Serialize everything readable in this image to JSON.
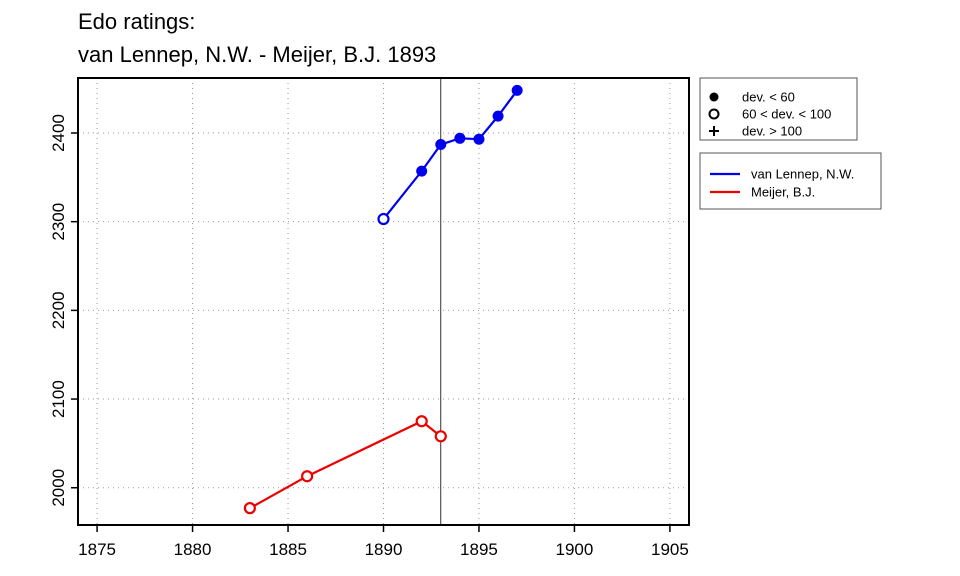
{
  "chart_data": {
    "type": "line",
    "title_lines": [
      "Edo ratings:",
      "van Lennep, N.W. - Meijer, B.J. 1893"
    ],
    "xlabel": "",
    "ylabel": "",
    "xlim": [
      1874,
      1906
    ],
    "ylim": [
      1958,
      2462
    ],
    "x_ticks": [
      1875,
      1880,
      1885,
      1890,
      1895,
      1900,
      1905
    ],
    "y_ticks": [
      2000,
      2100,
      2200,
      2300,
      2400
    ],
    "grid": true,
    "grid_style": "dotted",
    "reference_line_x": 1893,
    "colors": {
      "van_lennep": "#0000ee",
      "meijer": "#ee0000",
      "grid": "#999999",
      "axis": "#000000"
    },
    "series": [
      {
        "name": "van Lennep, N.W.",
        "color": "#0000ee",
        "points": [
          {
            "x": 1890,
            "y": 2303,
            "marker": "open-circle"
          },
          {
            "x": 1892,
            "y": 2357,
            "marker": "filled-circle"
          },
          {
            "x": 1893,
            "y": 2387,
            "marker": "filled-circle"
          },
          {
            "x": 1894,
            "y": 2394,
            "marker": "filled-circle"
          },
          {
            "x": 1895,
            "y": 2393,
            "marker": "filled-circle"
          },
          {
            "x": 1896,
            "y": 2419,
            "marker": "filled-circle"
          },
          {
            "x": 1897,
            "y": 2448,
            "marker": "filled-circle"
          }
        ]
      },
      {
        "name": "Meijer, B.J.",
        "color": "#ee0000",
        "points": [
          {
            "x": 1883,
            "y": 1977,
            "marker": "open-circle"
          },
          {
            "x": 1886,
            "y": 2013,
            "marker": "open-circle"
          },
          {
            "x": 1892,
            "y": 2075,
            "marker": "open-circle"
          },
          {
            "x": 1893,
            "y": 2058,
            "marker": "open-circle"
          }
        ]
      }
    ],
    "marker_legend": {
      "placement": "top-right, outside plot",
      "items": [
        {
          "symbol": "filled-circle",
          "label": "dev. < 60"
        },
        {
          "symbol": "open-circle",
          "label": "60 < dev. < 100"
        },
        {
          "symbol": "plus",
          "label": "dev. > 100"
        }
      ]
    },
    "series_legend": {
      "placement": "right, outside plot, below marker legend",
      "items": [
        {
          "label": "van Lennep, N.W.",
          "color": "#0000ee"
        },
        {
          "label": "Meijer, B.J.",
          "color": "#ee0000"
        }
      ]
    }
  }
}
